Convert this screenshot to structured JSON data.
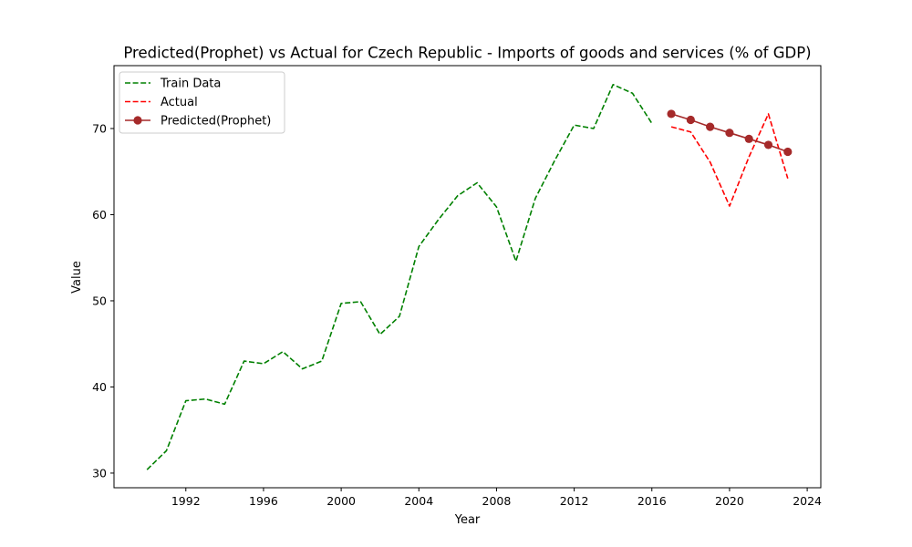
{
  "chart_data": {
    "type": "line",
    "title": "Predicted(Prophet) vs Actual for Czech Republic - Imports of goods and services (% of GDP)",
    "xlabel": "Year",
    "ylabel": "Value",
    "xlim": [
      1988.3,
      2024.7
    ],
    "ylim": [
      28.3,
      77.3
    ],
    "xticks": [
      1992,
      1996,
      2000,
      2004,
      2008,
      2012,
      2016,
      2020,
      2024
    ],
    "yticks": [
      30,
      40,
      50,
      60,
      70
    ],
    "grid": false,
    "legend": "top-left",
    "series": [
      {
        "name": "Train Data",
        "style": "dashed",
        "color": "#008000",
        "marker": "none",
        "x": [
          1990,
          1991,
          1992,
          1993,
          1994,
          1995,
          1996,
          1997,
          1998,
          1999,
          2000,
          2001,
          2002,
          2003,
          2004,
          2005,
          2006,
          2007,
          2008,
          2009,
          2010,
          2011,
          2012,
          2013,
          2014,
          2015,
          2016
        ],
        "y": [
          30.4,
          32.6,
          38.4,
          38.6,
          38.0,
          43.0,
          42.7,
          44.1,
          42.1,
          43.0,
          49.7,
          49.9,
          46.1,
          48.2,
          56.3,
          59.4,
          62.2,
          63.7,
          60.9,
          54.6,
          61.9,
          66.3,
          70.4,
          70.0,
          75.1,
          74.1,
          70.6
        ]
      },
      {
        "name": "Actual",
        "style": "dashed",
        "color": "#ff0000",
        "marker": "none",
        "x": [
          2017,
          2018,
          2019,
          2020,
          2021,
          2022,
          2023
        ],
        "y": [
          70.2,
          69.6,
          66.1,
          61.0,
          66.7,
          71.7,
          64.2
        ]
      },
      {
        "name": "Predicted(Prophet)",
        "style": "solid",
        "color": "#a52a2a",
        "marker": "circle",
        "x": [
          2017,
          2018,
          2019,
          2020,
          2021,
          2022,
          2023
        ],
        "y": [
          71.7,
          71.0,
          70.2,
          69.5,
          68.8,
          68.1,
          67.3
        ]
      }
    ]
  }
}
